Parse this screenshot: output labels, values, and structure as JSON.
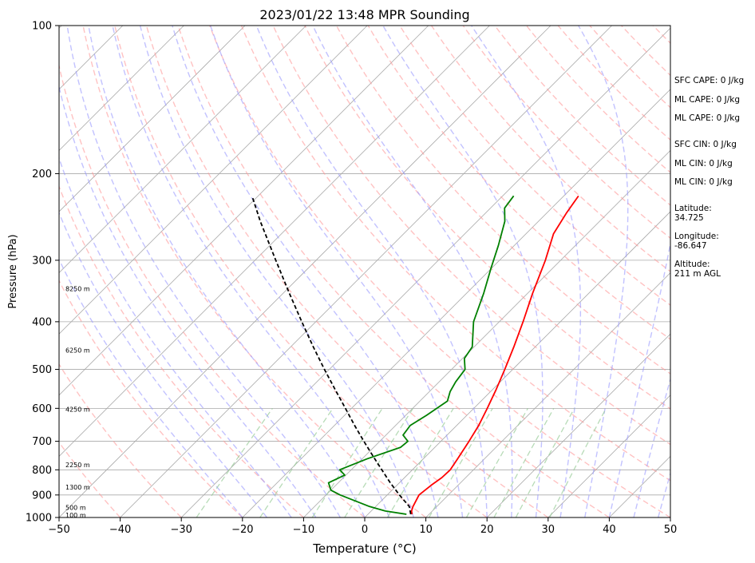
{
  "chart_data": {
    "type": "line",
    "title": "2023/01/22 13:48 MPR Sounding",
    "xlabel": "Temperature (°C)",
    "ylabel": "Pressure (hPa)",
    "xlim": [
      -50,
      50
    ],
    "ylim": [
      1000,
      100
    ],
    "y_scale": "log",
    "x_ticks": [
      "−50",
      "−40",
      "−30",
      "−20",
      "−10",
      "0",
      "10",
      "20",
      "30",
      "40",
      "50"
    ],
    "y_ticks": [
      {
        "p": 100,
        "label": "100"
      },
      {
        "p": 200,
        "label": "200"
      },
      {
        "p": 300,
        "label": "300"
      },
      {
        "p": 400,
        "label": "400"
      },
      {
        "p": 500,
        "label": "500"
      },
      {
        "p": 600,
        "label": "600"
      },
      {
        "p": 700,
        "label": "700"
      },
      {
        "p": 800,
        "label": "800"
      },
      {
        "p": 900,
        "label": "900"
      },
      {
        "p": 1000,
        "label": "1000"
      }
    ],
    "grid": true,
    "series": [
      {
        "key": "temperature",
        "color": "#ff0000",
        "points": [
          [
            985,
            7.2
          ],
          [
            970,
            6.6
          ],
          [
            950,
            6.1
          ],
          [
            900,
            5.2
          ],
          [
            860,
            5.6
          ],
          [
            830,
            6.1
          ],
          [
            800,
            6.2
          ],
          [
            760,
            5.6
          ],
          [
            700,
            4.6
          ],
          [
            650,
            3.6
          ],
          [
            600,
            2.2
          ],
          [
            550,
            0.6
          ],
          [
            500,
            -1.3
          ],
          [
            450,
            -3.5
          ],
          [
            400,
            -6.1
          ],
          [
            350,
            -9.2
          ],
          [
            300,
            -12.5
          ],
          [
            265,
            -15.5
          ],
          [
            240,
            -16.8
          ],
          [
            222,
            -17.6
          ]
        ]
      },
      {
        "key": "dewpoint",
        "color": "#008000",
        "points": [
          [
            985,
            6.3
          ],
          [
            970,
            2.3
          ],
          [
            950,
            -1.0
          ],
          [
            900,
            -7.7
          ],
          [
            880,
            -10.0
          ],
          [
            850,
            -11.6
          ],
          [
            820,
            -10.2
          ],
          [
            800,
            -11.9
          ],
          [
            760,
            -9.2
          ],
          [
            720,
            -5.6
          ],
          [
            700,
            -5.4
          ],
          [
            680,
            -7.2
          ],
          [
            650,
            -7.6
          ],
          [
            620,
            -6.6
          ],
          [
            580,
            -5.5
          ],
          [
            555,
            -6.6
          ],
          [
            530,
            -7.3
          ],
          [
            500,
            -7.8
          ],
          [
            475,
            -9.7
          ],
          [
            450,
            -10.3
          ],
          [
            400,
            -14.2
          ],
          [
            350,
            -17.2
          ],
          [
            310,
            -20.2
          ],
          [
            280,
            -22.6
          ],
          [
            250,
            -25.5
          ],
          [
            235,
            -27.7
          ],
          [
            222,
            -28.2
          ]
        ]
      },
      {
        "key": "parcel",
        "color": "#000000",
        "dashed": true,
        "points": [
          [
            985,
            7.0
          ],
          [
            950,
            5.5
          ],
          [
            900,
            2.0
          ],
          [
            850,
            -1.5
          ],
          [
            800,
            -5.0
          ],
          [
            750,
            -8.7
          ],
          [
            700,
            -12.6
          ],
          [
            650,
            -16.7
          ],
          [
            600,
            -21.0
          ],
          [
            550,
            -25.7
          ],
          [
            500,
            -30.8
          ],
          [
            450,
            -36.3
          ],
          [
            400,
            -42.3
          ],
          [
            350,
            -49.0
          ],
          [
            300,
            -56.6
          ],
          [
            250,
            -65.5
          ],
          [
            222,
            -71.0
          ]
        ]
      }
    ],
    "height_labels": [
      {
        "p": 989,
        "label": "100 m"
      },
      {
        "p": 955,
        "label": "500 m"
      },
      {
        "p": 868,
        "label": "1300 m"
      },
      {
        "p": 782,
        "label": "2250 m"
      },
      {
        "p": 603,
        "label": "4250 m"
      },
      {
        "p": 457,
        "label": "6250 m"
      },
      {
        "p": 343,
        "label": "8250 m"
      }
    ],
    "info": {
      "sfc_cape": "SFC CAPE: 0 J/kg",
      "ml_cape_1": "ML CAPE: 0 J/kg",
      "ml_cape_2": "ML CAPE: 0 J/kg",
      "sfc_cin": "SFC CIN: 0 J/kg",
      "ml_cin_1": "ML CIN: 0 J/kg",
      "ml_cin_2": "ML CIN: 0 J/kg",
      "latitude_label": "Latitude:",
      "latitude_value": "34.725",
      "longitude_label": "Longitude:",
      "longitude_value": "-86.647",
      "altitude_label": "Altitude:",
      "altitude_value": "211 m AGL"
    },
    "colors": {
      "isotherm": "#a9a9a9",
      "dry_adiabat": "#ff9999",
      "moist_adiabat": "#9999ff",
      "mixing_ratio": "#99cc99"
    }
  }
}
